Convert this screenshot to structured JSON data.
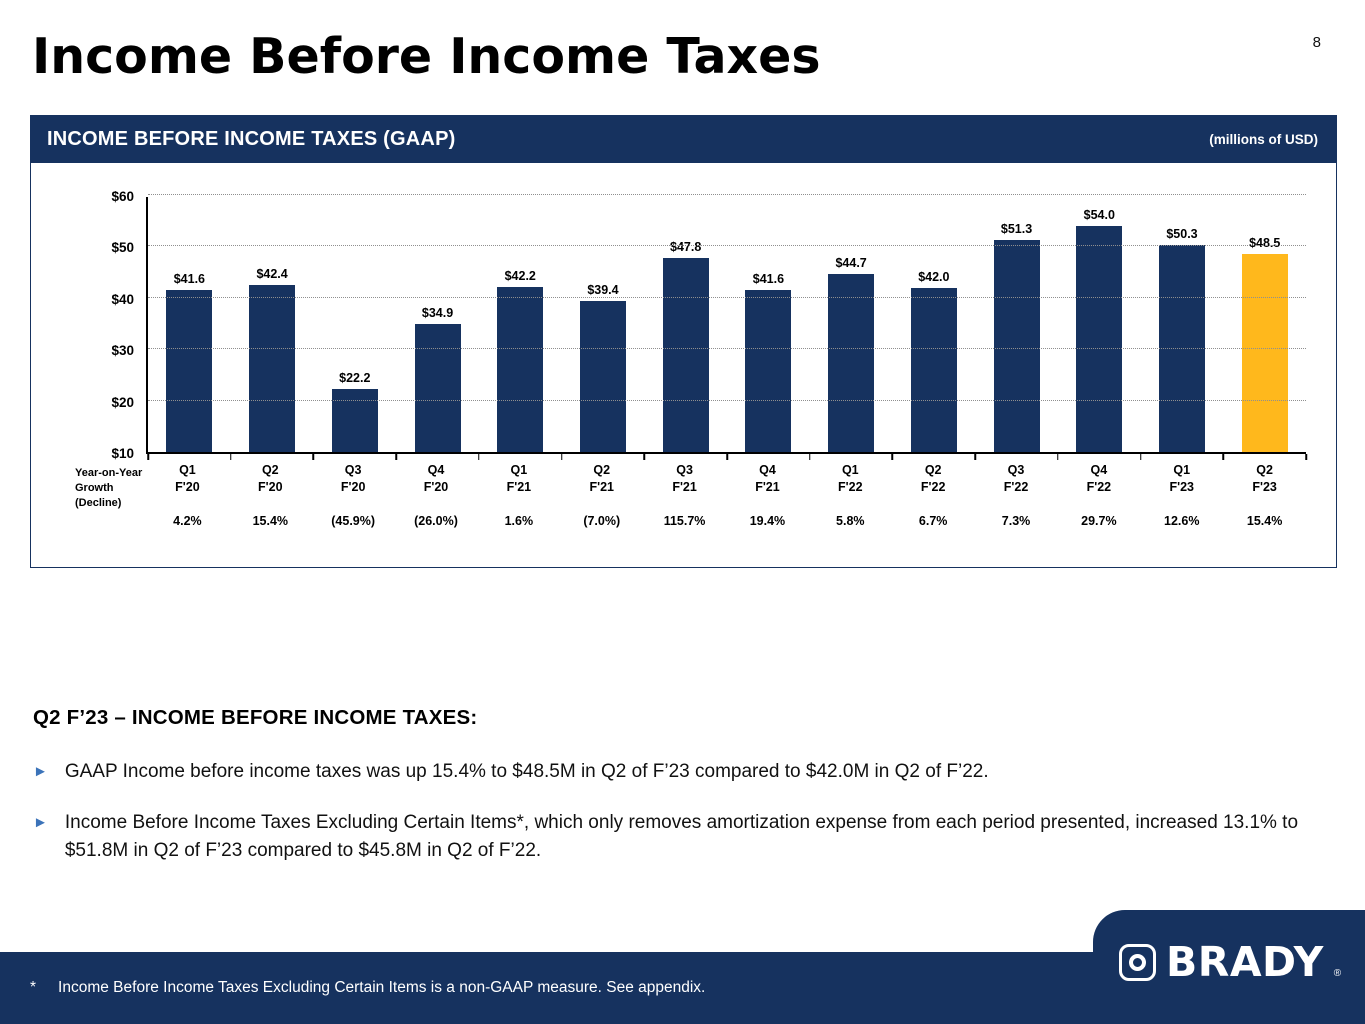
{
  "page_number": "8",
  "title": "Income Before Income Taxes",
  "chart_header": {
    "title": "INCOME BEFORE INCOME TAXES (GAAP)",
    "units": "(millions of USD)"
  },
  "chart_data": {
    "type": "bar",
    "title": "INCOME BEFORE INCOME TAXES (GAAP)",
    "units": "millions of USD",
    "categories": [
      "Q1 F'20",
      "Q2 F'20",
      "Q3 F'20",
      "Q4 F'20",
      "Q1 F'21",
      "Q2 F'21",
      "Q3 F'21",
      "Q4 F'21",
      "Q1 F'22",
      "Q2 F'22",
      "Q3 F'22",
      "Q4 F'22",
      "Q1 F'23",
      "Q2 F'23"
    ],
    "values": [
      41.6,
      42.4,
      22.2,
      34.9,
      42.2,
      39.4,
      47.8,
      41.6,
      44.7,
      42.0,
      51.3,
      54.0,
      50.3,
      48.5
    ],
    "value_labels": [
      "$41.6",
      "$42.4",
      "$22.2",
      "$34.9",
      "$42.2",
      "$39.4",
      "$47.8",
      "$41.6",
      "$44.7",
      "$42.0",
      "$51.3",
      "$54.0",
      "$50.3",
      "$48.5"
    ],
    "growth_labels": [
      "4.2%",
      "15.4%",
      "(45.9%)",
      "(26.0%)",
      "1.6%",
      "(7.0%)",
      "115.7%",
      "19.4%",
      "5.8%",
      "6.7%",
      "7.3%",
      "29.7%",
      "12.6%",
      "15.4%"
    ],
    "ylim": [
      10,
      60
    ],
    "ytick_values": [
      10,
      20,
      30,
      40,
      50,
      60
    ],
    "ytick_labels": [
      "$10",
      "$20",
      "$30",
      "$40",
      "$50",
      "$60"
    ],
    "bar_color": "#16325F",
    "highlight_color": "#FFB81C",
    "highlight_index": 13,
    "grid": "dotted horizontal"
  },
  "growth": {
    "label_lines": [
      "Year-on-Year",
      "Growth",
      "(Decline)"
    ]
  },
  "commentary": {
    "heading": "Q2 F’23 – INCOME BEFORE INCOME TAXES:",
    "bullet_icon": "►",
    "bullets": [
      "GAAP Income before income taxes was up 15.4% to $48.5M in Q2 of F’23 compared to $42.0M in Q2 of F’22.",
      "Income Before Income Taxes Excluding Certain Items*, which only removes amortization expense from each period presented, increased 13.1% to $51.8M in Q2 of F’23 compared to $45.8M in Q2 of F’22."
    ]
  },
  "footer": {
    "footnote_star": "*",
    "footnote_text": "Income Before Income Taxes Excluding Certain Items is a non-GAAP measure.  See appendix.",
    "brand": "BRADY",
    "registered": "®"
  }
}
